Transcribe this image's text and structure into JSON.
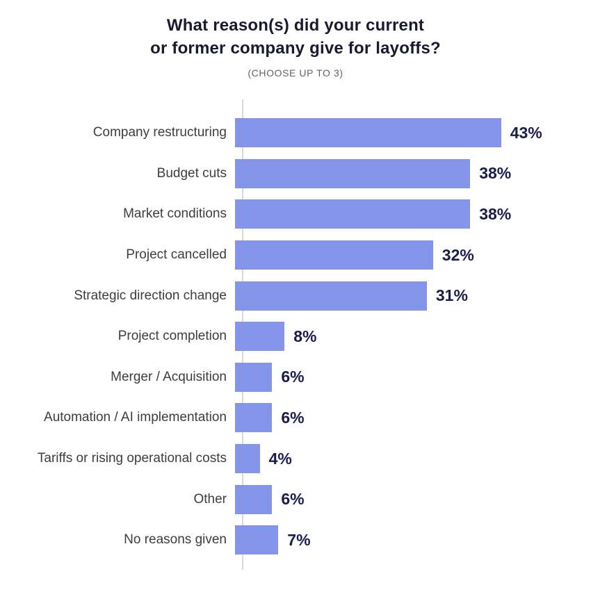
{
  "title": {
    "line1": "What reason(s) did your current",
    "line2": "or former company give for layoffs?",
    "subtitle": "(CHOOSE UP TO 3)"
  },
  "chart_data": {
    "type": "bar",
    "orientation": "horizontal",
    "title": "What reason(s) did your current or former company give for layoffs?",
    "subtitle": "(CHOOSE UP TO 3)",
    "categories": [
      "Company restructuring",
      "Budget cuts",
      "Market conditions",
      "Project cancelled",
      "Strategic direction change",
      "Project completion",
      "Merger / Acquisition",
      "Automation / AI implementation",
      "Tariffs or rising operational costs",
      "Other",
      "No reasons given"
    ],
    "values": [
      43,
      38,
      38,
      32,
      31,
      8,
      6,
      6,
      4,
      6,
      7
    ],
    "value_suffix": "%",
    "xlim": [
      0,
      47
    ],
    "grid": false,
    "legend": false,
    "data_labels": "outside-end",
    "colors": {
      "bar": "#8495e9",
      "value_label": "#1b1c4d",
      "category_label": "#3d3d3d",
      "title": "#191a30",
      "subtitle": "#5f6368",
      "axis_line": "#d9d9d9",
      "background": "#ffffff"
    }
  }
}
